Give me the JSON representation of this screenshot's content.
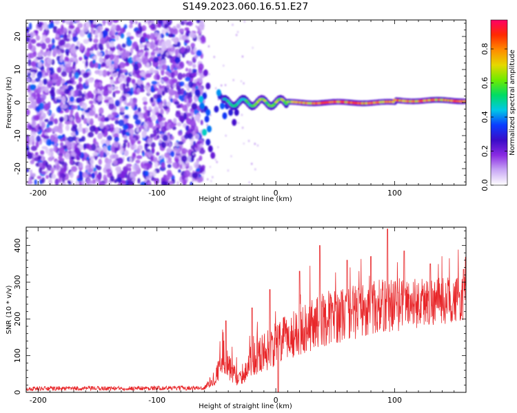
{
  "title": "S149.2023.060.16.51.E27",
  "colormap": {
    "stops": [
      "#ffffff",
      "#c9a8f5",
      "#8a2be2",
      "#3a0cc8",
      "#0a3cff",
      "#00c8e6",
      "#00dc64",
      "#6eeb00",
      "#e6d800",
      "#ff8c00",
      "#ff2a00",
      "#ff0066"
    ]
  },
  "chart_data": [
    {
      "type": "heatmap",
      "title": "S149.2023.060.16.51.E27",
      "xlabel": "Height of straight line (km)",
      "ylabel": "Frequency (Hz)",
      "xlim": [
        -210,
        160
      ],
      "ylim": [
        -25,
        25
      ],
      "xticks": [
        -200,
        -100,
        0,
        100
      ],
      "yticks": [
        -20,
        -10,
        0,
        10,
        20
      ],
      "colorbar": {
        "label": "Normalized spectral amplitude",
        "range": [
          0.0,
          0.97
        ],
        "ticks": [
          "0.0",
          "0.2",
          "0.4",
          "0.6",
          "0.8"
        ]
      },
      "features": [
        {
          "region": "noise",
          "x_range": [
            -210,
            -65
          ],
          "freq_range": [
            -25,
            25
          ],
          "amplitude": "0.1-0.4"
        },
        {
          "region": "onset",
          "x_range": [
            -70,
            -35
          ],
          "freq_range": [
            -15,
            10
          ],
          "amplitude": "0.2-0.5"
        },
        {
          "region": "carrier",
          "x_range": [
            -35,
            160
          ],
          "freq_center_hz": 0,
          "amplitude_peak": 0.9
        }
      ]
    },
    {
      "type": "line",
      "xlabel": "Height of straight line (km)",
      "ylabel": "SNR (10 * v/v)",
      "xlim": [
        -210,
        160
      ],
      "ylim": [
        0,
        450
      ],
      "xticks": [
        -200,
        -100,
        0,
        100
      ],
      "yticks": [
        0,
        100,
        200,
        300,
        400
      ],
      "series": [
        {
          "name": "SNR",
          "color": "#e8272a",
          "envelope_x": [
            -210,
            -60,
            -50,
            -45,
            -42,
            -38,
            -35,
            -30,
            -20,
            -10,
            0,
            20,
            40,
            60,
            80,
            100,
            120,
            140,
            160
          ],
          "envelope_mean": [
            10,
            12,
            45,
            120,
            80,
            60,
            50,
            35,
            90,
            110,
            130,
            170,
            200,
            215,
            230,
            240,
            245,
            250,
            255
          ],
          "envelope_noise": [
            6,
            6,
            25,
            70,
            50,
            35,
            30,
            20,
            45,
            55,
            60,
            70,
            75,
            75,
            75,
            75,
            70,
            65,
            60
          ],
          "peaks": [
            [
              -42,
              195
            ],
            [
              -20,
              230
            ],
            [
              -5,
              280
            ],
            [
              20,
              330
            ],
            [
              37,
              400
            ],
            [
              60,
              360
            ],
            [
              80,
              370
            ],
            [
              94,
              445
            ],
            [
              108,
              385
            ],
            [
              130,
              350
            ],
            [
              158,
              335
            ]
          ]
        }
      ]
    }
  ]
}
